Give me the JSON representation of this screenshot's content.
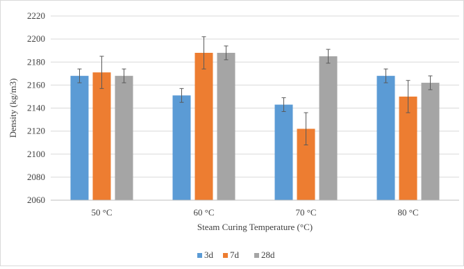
{
  "chart_data": {
    "type": "bar",
    "title": "",
    "xlabel": "Steam Curing Temperature  (°C)",
    "ylabel": "Density  (kg/m3)",
    "categories": [
      "50 °C",
      "60 °C",
      "70 °C",
      "80 °C"
    ],
    "ylim": [
      2060,
      2220
    ],
    "yticks": [
      2060,
      2080,
      2100,
      2120,
      2140,
      2160,
      2180,
      2200,
      2220
    ],
    "grid": true,
    "legend_position": "bottom",
    "series": [
      {
        "name": "3d",
        "color": "#5b9bd5",
        "values": [
          2168,
          2151,
          2143,
          2168
        ],
        "errors": [
          6,
          6,
          6,
          6
        ]
      },
      {
        "name": "7d",
        "color": "#ed7d31",
        "values": [
          2171,
          2188,
          2122,
          2150
        ],
        "errors": [
          14,
          14,
          14,
          14
        ]
      },
      {
        "name": "28d",
        "color": "#a5a5a5",
        "values": [
          2168,
          2188,
          2185,
          2162
        ],
        "errors": [
          6,
          6,
          6,
          6
        ]
      }
    ]
  }
}
